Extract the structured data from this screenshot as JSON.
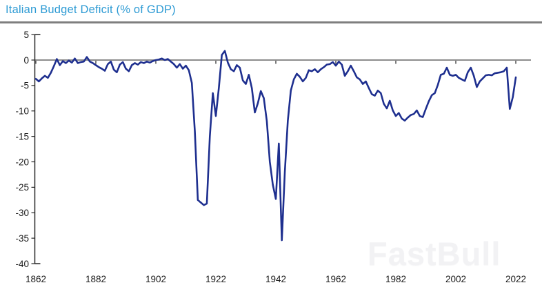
{
  "title": "Italian Budget Deficit (% of GDP)",
  "watermark": "FastBull",
  "colors": {
    "title": "#2E9BD4",
    "title_underline": "#7F7F7F",
    "line": "#1E2F8F",
    "zero_line": "#8C8C8C",
    "axis": "#262626",
    "tick_label": "#1A1A1A",
    "watermark": "#F2F2F4",
    "background": "#FFFFFF"
  },
  "chart_data": {
    "type": "line",
    "title": "Italian Budget Deficit (% of GDP)",
    "xlabel": "",
    "ylabel": "",
    "grid": false,
    "legend": false,
    "zero_line": true,
    "xlim": [
      1862,
      2022
    ],
    "ylim": [
      -40,
      5
    ],
    "x_ticks": [
      1862,
      1882,
      1902,
      1922,
      1942,
      1962,
      1982,
      2002,
      2022
    ],
    "y_ticks": [
      5,
      0,
      -5,
      -10,
      -15,
      -20,
      -25,
      -30,
      -35,
      -40
    ],
    "x": [
      1862,
      1863,
      1864,
      1865,
      1866,
      1867,
      1868,
      1869,
      1870,
      1871,
      1872,
      1873,
      1874,
      1875,
      1876,
      1877,
      1878,
      1879,
      1880,
      1881,
      1882,
      1883,
      1884,
      1885,
      1886,
      1887,
      1888,
      1889,
      1890,
      1891,
      1892,
      1893,
      1894,
      1895,
      1896,
      1897,
      1898,
      1899,
      1900,
      1901,
      1902,
      1903,
      1904,
      1905,
      1906,
      1907,
      1908,
      1909,
      1910,
      1911,
      1912,
      1913,
      1914,
      1915,
      1916,
      1917,
      1918,
      1919,
      1920,
      1921,
      1922,
      1923,
      1924,
      1925,
      1926,
      1927,
      1928,
      1929,
      1930,
      1931,
      1932,
      1933,
      1934,
      1935,
      1936,
      1937,
      1938,
      1939,
      1940,
      1941,
      1942,
      1943,
      1944,
      1945,
      1946,
      1947,
      1948,
      1949,
      1950,
      1951,
      1952,
      1953,
      1954,
      1955,
      1956,
      1957,
      1958,
      1959,
      1960,
      1961,
      1962,
      1963,
      1964,
      1965,
      1966,
      1967,
      1968,
      1969,
      1970,
      1971,
      1972,
      1973,
      1974,
      1975,
      1976,
      1977,
      1978,
      1979,
      1980,
      1981,
      1982,
      1983,
      1984,
      1985,
      1986,
      1987,
      1988,
      1989,
      1990,
      1991,
      1992,
      1993,
      1994,
      1995,
      1996,
      1997,
      1998,
      1999,
      2000,
      2001,
      2002,
      2003,
      2004,
      2005,
      2006,
      2007,
      2008,
      2009,
      2010,
      2011,
      2012,
      2013,
      2014,
      2015,
      2016,
      2017,
      2018,
      2019,
      2020,
      2021,
      2022
    ],
    "series": [
      {
        "name": "Italian budget deficit (% of GDP)",
        "values": [
          -3.7,
          -4.2,
          -3.6,
          -3.1,
          -3.5,
          -2.5,
          -1.2,
          0.2,
          -1.0,
          -0.2,
          -0.6,
          -0.1,
          -0.5,
          0.3,
          -0.6,
          -0.4,
          -0.3,
          0.6,
          -0.3,
          -0.6,
          -1.0,
          -1.4,
          -1.7,
          -2.1,
          -0.8,
          -0.3,
          -1.9,
          -2.4,
          -0.9,
          -0.4,
          -1.7,
          -2.2,
          -1.0,
          -0.6,
          -0.9,
          -0.4,
          -0.6,
          -0.3,
          -0.5,
          -0.2,
          0.0,
          0.1,
          0.3,
          0.0,
          0.2,
          -0.3,
          -0.8,
          -1.5,
          -0.8,
          -1.7,
          -1.1,
          -2.0,
          -4.5,
          -14.0,
          -27.5,
          -28.0,
          -28.5,
          -28.2,
          -15.0,
          -6.5,
          -11.0,
          -5.5,
          1.0,
          1.8,
          -0.5,
          -1.8,
          -2.2,
          -1.0,
          -1.5,
          -4.0,
          -4.7,
          -2.9,
          -5.5,
          -10.3,
          -8.5,
          -6.1,
          -7.5,
          -12.0,
          -20.0,
          -24.5,
          -27.3,
          -16.4,
          -35.4,
          -22.0,
          -11.9,
          -6.0,
          -3.8,
          -2.7,
          -3.3,
          -4.2,
          -3.5,
          -2.0,
          -2.2,
          -1.8,
          -2.4,
          -1.8,
          -1.4,
          -0.9,
          -0.8,
          -0.4,
          -1.1,
          -0.3,
          -0.9,
          -3.1,
          -2.2,
          -1.1,
          -2.2,
          -3.4,
          -3.8,
          -4.7,
          -4.2,
          -5.5,
          -6.7,
          -7.0,
          -6.0,
          -6.5,
          -8.6,
          -9.5,
          -8.0,
          -9.9,
          -11.0,
          -10.4,
          -11.5,
          -11.9,
          -11.3,
          -10.8,
          -10.6,
          -9.9,
          -11.0,
          -11.2,
          -9.6,
          -8.1,
          -6.9,
          -6.5,
          -4.9,
          -2.9,
          -2.7,
          -1.5,
          -2.9,
          -3.1,
          -2.9,
          -3.5,
          -3.8,
          -4.1,
          -2.4,
          -1.5,
          -3.1,
          -5.3,
          -4.2,
          -3.6,
          -3.0,
          -2.9,
          -3.0,
          -2.6,
          -2.5,
          -2.4,
          -2.2,
          -1.5,
          -9.6,
          -7.3,
          -3.4
        ]
      }
    ]
  }
}
